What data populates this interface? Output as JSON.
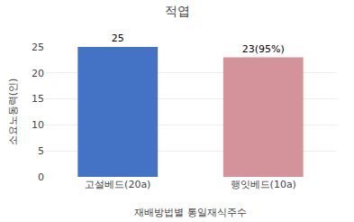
{
  "chart_data": {
    "type": "bar",
    "title": "적엽",
    "categories": [
      "고설베드(20a)",
      "행잇베드(10a)"
    ],
    "values": [
      25,
      23
    ],
    "value_labels": [
      "25",
      "23(95%)"
    ],
    "data_labels": true,
    "colors": [
      "#4472C4",
      "#D4939A"
    ],
    "xlabel": "재배방법별 통일재식주수",
    "ylabel": "소요노동력(인)",
    "ylim": [
      0,
      25
    ],
    "yticks": [
      0,
      5,
      10,
      15,
      20,
      25
    ],
    "grid": true
  }
}
